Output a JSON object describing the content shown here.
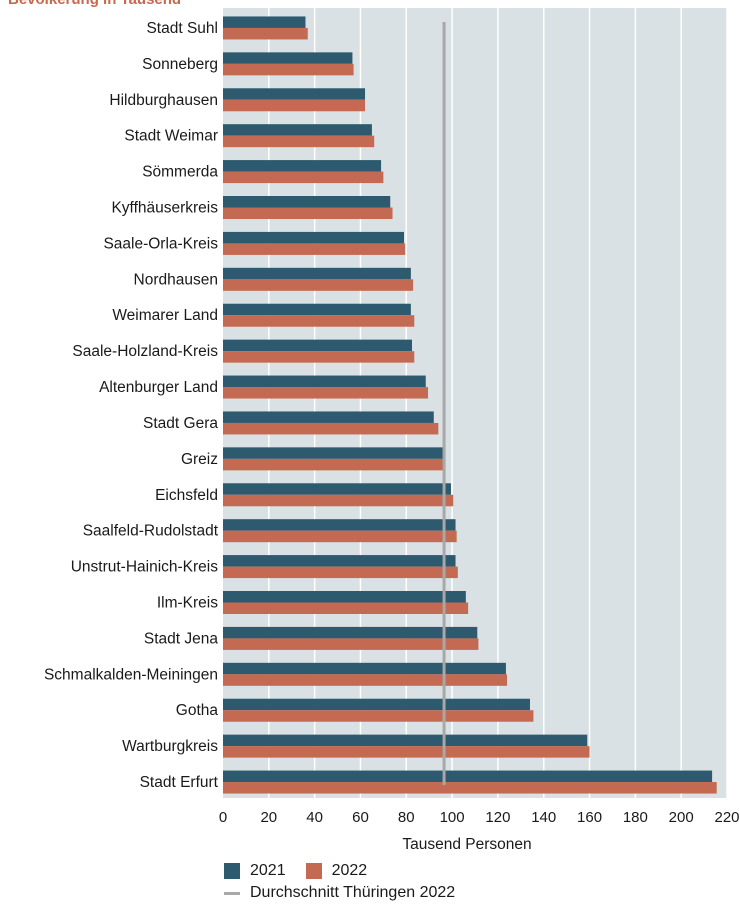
{
  "header": {
    "cut_text": "Bevölkerung in Tausend"
  },
  "colors": {
    "plot_bg": "#d9e1e4",
    "grid": "#ffffff",
    "bar_2021": "#2d5a6e",
    "bar_2022": "#c46a52",
    "avg_line": "#a8a8a8",
    "text": "#1a1a1a"
  },
  "legend": {
    "label_2021": "2021",
    "label_2022": "2022",
    "label_avg": "Durchschnitt Thüringen 2022"
  },
  "chart_data": {
    "type": "bar",
    "orientation": "horizontal",
    "xlabel": "Tausend Personen",
    "xlim": [
      0,
      220
    ],
    "xticks": [
      0,
      20,
      40,
      60,
      80,
      100,
      120,
      140,
      160,
      180,
      200,
      220
    ],
    "grid": true,
    "legend_position": "bottom",
    "categories": [
      "Stadt Suhl",
      "Sonneberg",
      "Hildburghausen",
      "Stadt Weimar",
      "Sömmerda",
      "Kyffhäuserkreis",
      "Saale-Orla-Kreis",
      "Nordhausen",
      "Weimarer Land",
      "Saale-Holzland-Kreis",
      "Altenburger Land",
      "Stadt Gera",
      "Greiz",
      "Eichsfeld",
      "Saalfeld-Rudolstadt",
      "Unstrut-Hainich-Kreis",
      "Ilm-Kreis",
      "Stadt Jena",
      "Schmalkalden-Meiningen",
      "Gotha",
      "Wartburgkreis",
      "Stadt Erfurt"
    ],
    "series": [
      {
        "name": "2021",
        "values": [
          36,
          56.5,
          62,
          65,
          69,
          73,
          79,
          82,
          82,
          82.5,
          88.5,
          92,
          96.5,
          99.5,
          101.5,
          101.5,
          106,
          111,
          123.5,
          134,
          159,
          213.5
        ]
      },
      {
        "name": "2022",
        "values": [
          37,
          57,
          62,
          66,
          70,
          74,
          79.5,
          83,
          83.5,
          83.5,
          89.5,
          94,
          96.5,
          100.5,
          102,
          102.5,
          107,
          111.5,
          124,
          135.5,
          160,
          215.5
        ]
      }
    ],
    "reference_line": {
      "name": "Durchschnitt Thüringen 2022",
      "value": 96.5
    }
  }
}
